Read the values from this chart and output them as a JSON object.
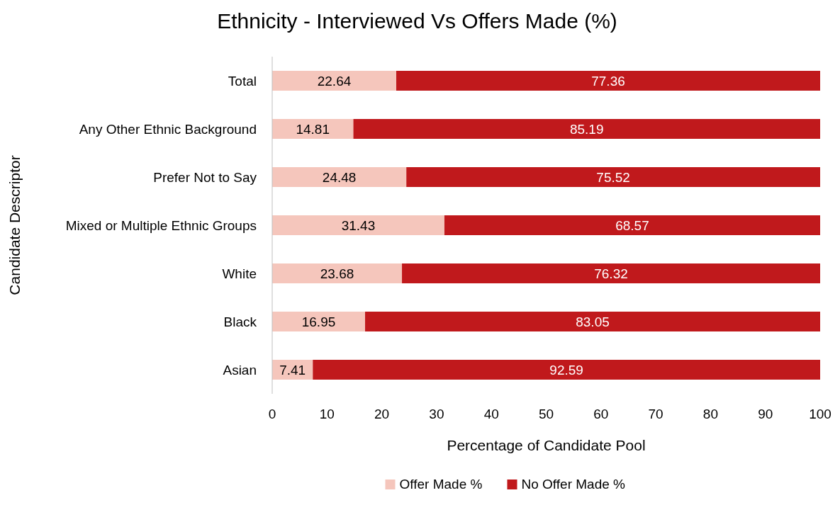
{
  "chart_data": {
    "type": "bar",
    "orientation": "horizontal",
    "stacked": true,
    "title": "Ethnicity - Interviewed Vs Offers Made (%)",
    "xlabel": "Percentage of Candidate Pool",
    "ylabel": "Candidate Descriptor",
    "categories": [
      "Total",
      "Any Other Ethnic Background",
      "Prefer Not to Say",
      "Mixed or Multiple Ethnic Groups",
      "White",
      "Black",
      "Asian"
    ],
    "series": [
      {
        "name": "Offer Made %",
        "color": "#f5c6bc",
        "values": [
          22.64,
          14.81,
          24.48,
          31.43,
          23.68,
          16.95,
          7.41
        ]
      },
      {
        "name": "No Offer Made %",
        "color": "#c0191c",
        "values": [
          77.36,
          85.19,
          75.52,
          68.57,
          76.32,
          83.05,
          92.59
        ]
      }
    ],
    "xlim": [
      0,
      100
    ],
    "xticks": [
      0,
      10,
      20,
      30,
      40,
      50,
      60,
      70,
      80,
      90,
      100
    ],
    "data_labels": true,
    "grid": false,
    "legend": "bottom"
  }
}
